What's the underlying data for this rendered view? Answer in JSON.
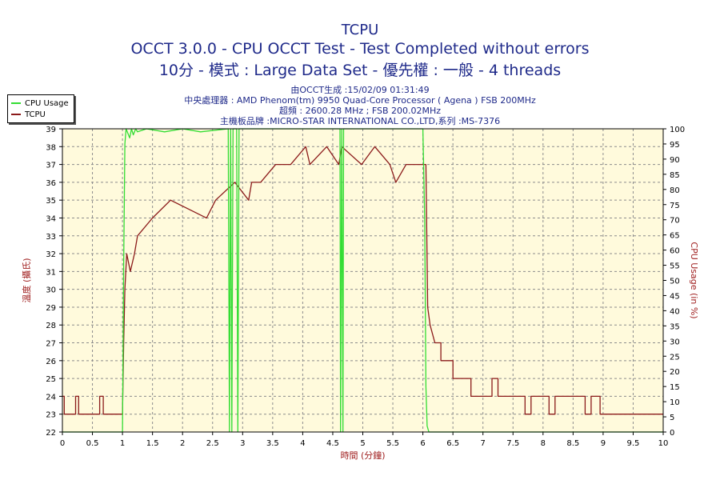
{
  "header": {
    "title": "TCPU",
    "subtitle": "OCCT 3.0.0 - CPU OCCT Test - Test Completed without errors",
    "subtitle2": "10分 - 模式 : Large Data Set - 優先權 : 一般 - 4 threads"
  },
  "info": {
    "line1": "由OCCT生成 :15/02/09 01:31:49",
    "line2": "中央處理器 : AMD Phenom(tm) 9950 Quad-Core Processor ( Agena ) FSB 200MHz",
    "line3": "超頻 : 2600.28 MHz ; FSB 200.02MHz",
    "line4": "主機板品牌 :MICRO-STAR INTERNATIONAL CO.,LTD,系列 :MS-7376"
  },
  "legend": [
    {
      "label": "CPU Usage",
      "color": "#33dd33"
    },
    {
      "label": "TCPU",
      "color": "#8b1a1a"
    }
  ],
  "colors": {
    "plot_bg": "#fffadc",
    "grid": "#8c8c8c",
    "tcpu": "#8b1a1a",
    "cpu": "#33dd33",
    "axis_label": "#a02020"
  },
  "chart_data": {
    "type": "line",
    "xlabel": "時間 (分鐘)",
    "ylabel": "溫度 (攝氏)",
    "y2label": "CPU Usage (in %)",
    "xlim": [
      0,
      10
    ],
    "ylim": [
      22,
      39
    ],
    "y2lim": [
      0,
      100
    ],
    "xticks": [
      "0",
      "0.5",
      "1",
      "1.5",
      "2",
      "2.5",
      "3",
      "3.5",
      "4",
      "4.5",
      "5",
      "5.5",
      "6",
      "6.5",
      "7",
      "7.5",
      "8",
      "8.5",
      "9",
      "9.5",
      "10"
    ],
    "yticks": [
      "22",
      "23",
      "24",
      "25",
      "26",
      "27",
      "28",
      "29",
      "30",
      "31",
      "32",
      "33",
      "34",
      "35",
      "36",
      "37",
      "38",
      "39"
    ],
    "y2ticks": [
      "0",
      "5",
      "10",
      "15",
      "20",
      "25",
      "30",
      "35",
      "40",
      "45",
      "50",
      "55",
      "60",
      "65",
      "70",
      "75",
      "80",
      "85",
      "90",
      "95",
      "100"
    ],
    "grid": true,
    "series": [
      {
        "name": "TCPU",
        "axis": "left",
        "x": [
          0,
          0.03,
          0.03,
          0.22,
          0.22,
          0.27,
          0.27,
          0.62,
          0.62,
          0.68,
          0.68,
          1.0,
          1.02,
          1.04,
          1.07,
          1.07,
          1.13,
          1.13,
          1.2,
          1.2,
          1.25,
          1.25,
          1.5,
          1.5,
          1.8,
          1.8,
          2.4,
          2.4,
          2.55,
          2.55,
          2.87,
          2.87,
          3.1,
          3.1,
          3.15,
          3.15,
          3.3,
          3.3,
          3.55,
          3.55,
          3.62,
          3.62,
          3.8,
          3.8,
          4.05,
          4.05,
          4.12,
          4.12,
          4.4,
          4.4,
          4.6,
          4.6,
          4.65,
          4.65,
          4.98,
          4.98,
          5.2,
          5.2,
          5.45,
          5.45,
          5.55,
          5.55,
          5.72,
          5.72,
          5.78,
          5.78,
          6.05,
          6.08,
          6.12,
          6.2,
          6.3,
          6.3,
          6.5,
          6.5,
          6.8,
          6.8,
          7.15,
          7.15,
          7.25,
          7.25,
          7.7,
          7.7,
          7.8,
          7.8,
          8.1,
          8.1,
          8.2,
          8.2,
          8.7,
          8.7,
          8.8,
          8.8,
          8.95,
          8.95,
          10
        ],
        "values": [
          24,
          24,
          23,
          23,
          24,
          24,
          23,
          23,
          24,
          24,
          23,
          23,
          27,
          30,
          32,
          32,
          31,
          31,
          32,
          32,
          33,
          33,
          34,
          34,
          35,
          35,
          34,
          34,
          35,
          35,
          36,
          36,
          35,
          35,
          36,
          36,
          36,
          36,
          37,
          37,
          37,
          37,
          37,
          37,
          38,
          38,
          37,
          37,
          38,
          38,
          37,
          37,
          38,
          38,
          37,
          37,
          38,
          38,
          37,
          37,
          36,
          36,
          37,
          37,
          37,
          37,
          37,
          29,
          28,
          27,
          27,
          26,
          26,
          25,
          25,
          24,
          24,
          25,
          25,
          24,
          24,
          23,
          23,
          24,
          24,
          23,
          23,
          24,
          24,
          23,
          23,
          24,
          24,
          23,
          23
        ]
      },
      {
        "name": "CPU Usage",
        "axis": "right",
        "x": [
          0,
          1.0,
          1.02,
          1.04,
          1.06,
          1.08,
          1.12,
          1.15,
          1.18,
          1.22,
          1.25,
          1.4,
          1.7,
          2.0,
          2.3,
          2.76,
          2.78,
          2.8,
          2.82,
          2.84,
          2.9,
          2.92,
          2.94,
          3.5,
          4.0,
          4.62,
          4.63,
          4.65,
          4.67,
          4.68,
          5.5,
          6.0,
          6.03,
          6.05,
          6.07,
          6.1,
          10
        ],
        "values": [
          0,
          0,
          55,
          95,
          100,
          99,
          97,
          100,
          98,
          100,
          99,
          100,
          99,
          100,
          99,
          100,
          0,
          100,
          0,
          100,
          100,
          0,
          100,
          100,
          100,
          100,
          0,
          100,
          0,
          100,
          100,
          100,
          70,
          15,
          2,
          0,
          0
        ]
      }
    ]
  }
}
